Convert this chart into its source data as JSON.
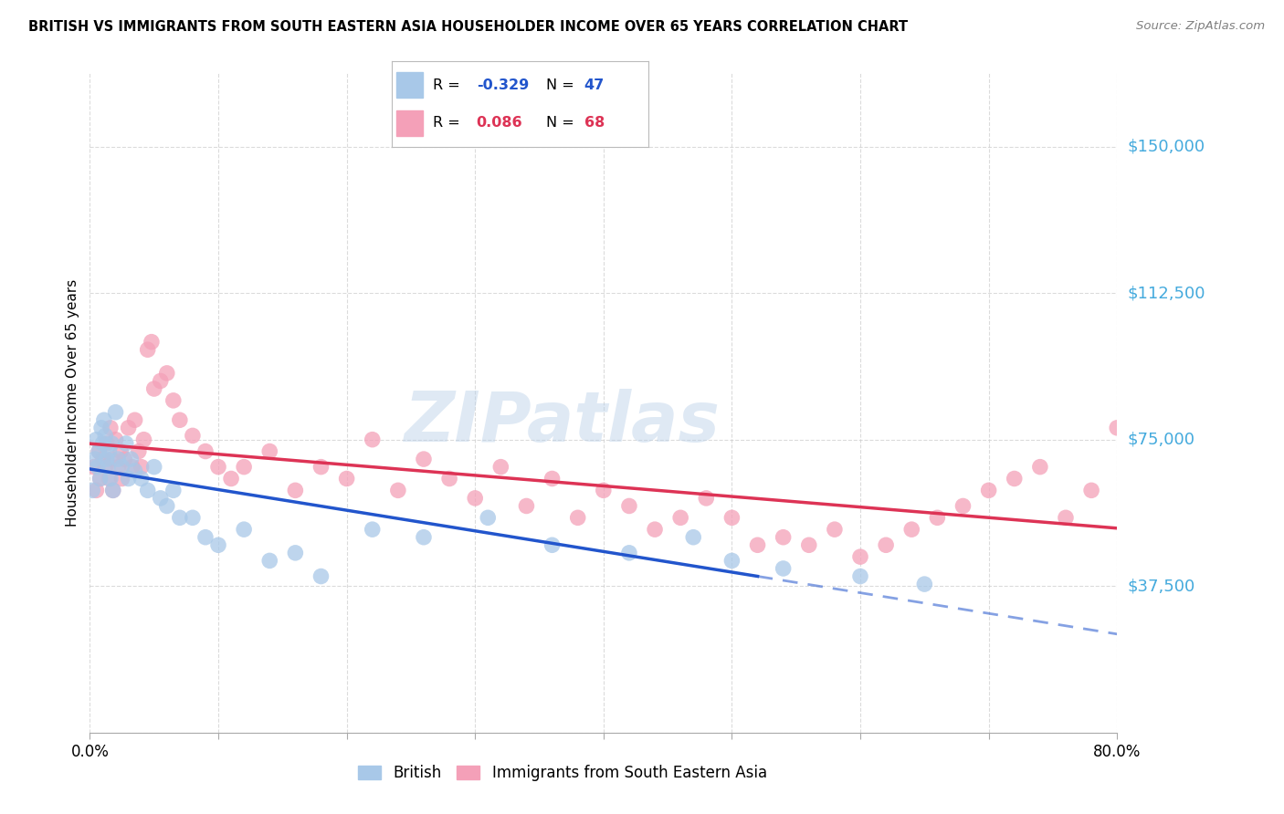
{
  "title": "BRITISH VS IMMIGRANTS FROM SOUTH EASTERN ASIA HOUSEHOLDER INCOME OVER 65 YEARS CORRELATION CHART",
  "source": "Source: ZipAtlas.com",
  "ylabel": "Householder Income Over 65 years",
  "xlim": [
    0.0,
    0.8
  ],
  "ylim": [
    0,
    168750
  ],
  "yticks": [
    0,
    37500,
    75000,
    112500,
    150000
  ],
  "ytick_labels": [
    "",
    "$37,500",
    "$75,000",
    "$112,500",
    "$150,000"
  ],
  "xticks": [
    0.0,
    0.1,
    0.2,
    0.3,
    0.4,
    0.5,
    0.6,
    0.7,
    0.8
  ],
  "xtick_labels": [
    "0.0%",
    "",
    "",
    "",
    "",
    "",
    "",
    "",
    "80.0%"
  ],
  "british_color": "#a8c8e8",
  "sea_color": "#f4a0b8",
  "trend_british_color": "#2255cc",
  "trend_sea_color": "#dd3355",
  "watermark": "ZIPatlas",
  "legend_R_british": "-0.329",
  "legend_N_british": "47",
  "legend_R_sea": "0.086",
  "legend_N_sea": "68",
  "british_x": [
    0.002,
    0.004,
    0.005,
    0.006,
    0.007,
    0.008,
    0.009,
    0.01,
    0.011,
    0.012,
    0.013,
    0.014,
    0.015,
    0.016,
    0.017,
    0.018,
    0.02,
    0.022,
    0.025,
    0.028,
    0.03,
    0.032,
    0.035,
    0.04,
    0.045,
    0.05,
    0.055,
    0.06,
    0.065,
    0.07,
    0.08,
    0.09,
    0.1,
    0.12,
    0.14,
    0.16,
    0.18,
    0.22,
    0.26,
    0.31,
    0.36,
    0.42,
    0.47,
    0.5,
    0.54,
    0.6,
    0.65
  ],
  "british_y": [
    62000,
    70000,
    75000,
    68000,
    72000,
    65000,
    78000,
    74000,
    80000,
    76000,
    70000,
    68000,
    72000,
    65000,
    74000,
    62000,
    82000,
    70000,
    68000,
    74000,
    65000,
    70000,
    67000,
    65000,
    62000,
    68000,
    60000,
    58000,
    62000,
    55000,
    55000,
    50000,
    48000,
    52000,
    44000,
    46000,
    40000,
    52000,
    50000,
    55000,
    48000,
    46000,
    50000,
    44000,
    42000,
    40000,
    38000
  ],
  "sea_x": [
    0.003,
    0.005,
    0.007,
    0.008,
    0.01,
    0.012,
    0.013,
    0.015,
    0.016,
    0.017,
    0.018,
    0.02,
    0.022,
    0.024,
    0.025,
    0.027,
    0.03,
    0.033,
    0.035,
    0.038,
    0.04,
    0.042,
    0.045,
    0.048,
    0.05,
    0.055,
    0.06,
    0.065,
    0.07,
    0.08,
    0.09,
    0.1,
    0.11,
    0.12,
    0.14,
    0.16,
    0.18,
    0.2,
    0.22,
    0.24,
    0.26,
    0.28,
    0.3,
    0.32,
    0.34,
    0.36,
    0.38,
    0.4,
    0.42,
    0.44,
    0.46,
    0.48,
    0.5,
    0.52,
    0.54,
    0.56,
    0.58,
    0.6,
    0.62,
    0.64,
    0.66,
    0.68,
    0.7,
    0.72,
    0.74,
    0.76,
    0.78,
    0.8
  ],
  "sea_y": [
    68000,
    62000,
    72000,
    65000,
    70000,
    68000,
    74000,
    65000,
    78000,
    70000,
    62000,
    75000,
    68000,
    72000,
    65000,
    70000,
    78000,
    68000,
    80000,
    72000,
    68000,
    75000,
    98000,
    100000,
    88000,
    90000,
    92000,
    85000,
    80000,
    76000,
    72000,
    68000,
    65000,
    68000,
    72000,
    62000,
    68000,
    65000,
    75000,
    62000,
    70000,
    65000,
    60000,
    68000,
    58000,
    65000,
    55000,
    62000,
    58000,
    52000,
    55000,
    60000,
    55000,
    48000,
    50000,
    48000,
    52000,
    45000,
    48000,
    52000,
    55000,
    58000,
    62000,
    65000,
    68000,
    55000,
    62000,
    78000
  ]
}
